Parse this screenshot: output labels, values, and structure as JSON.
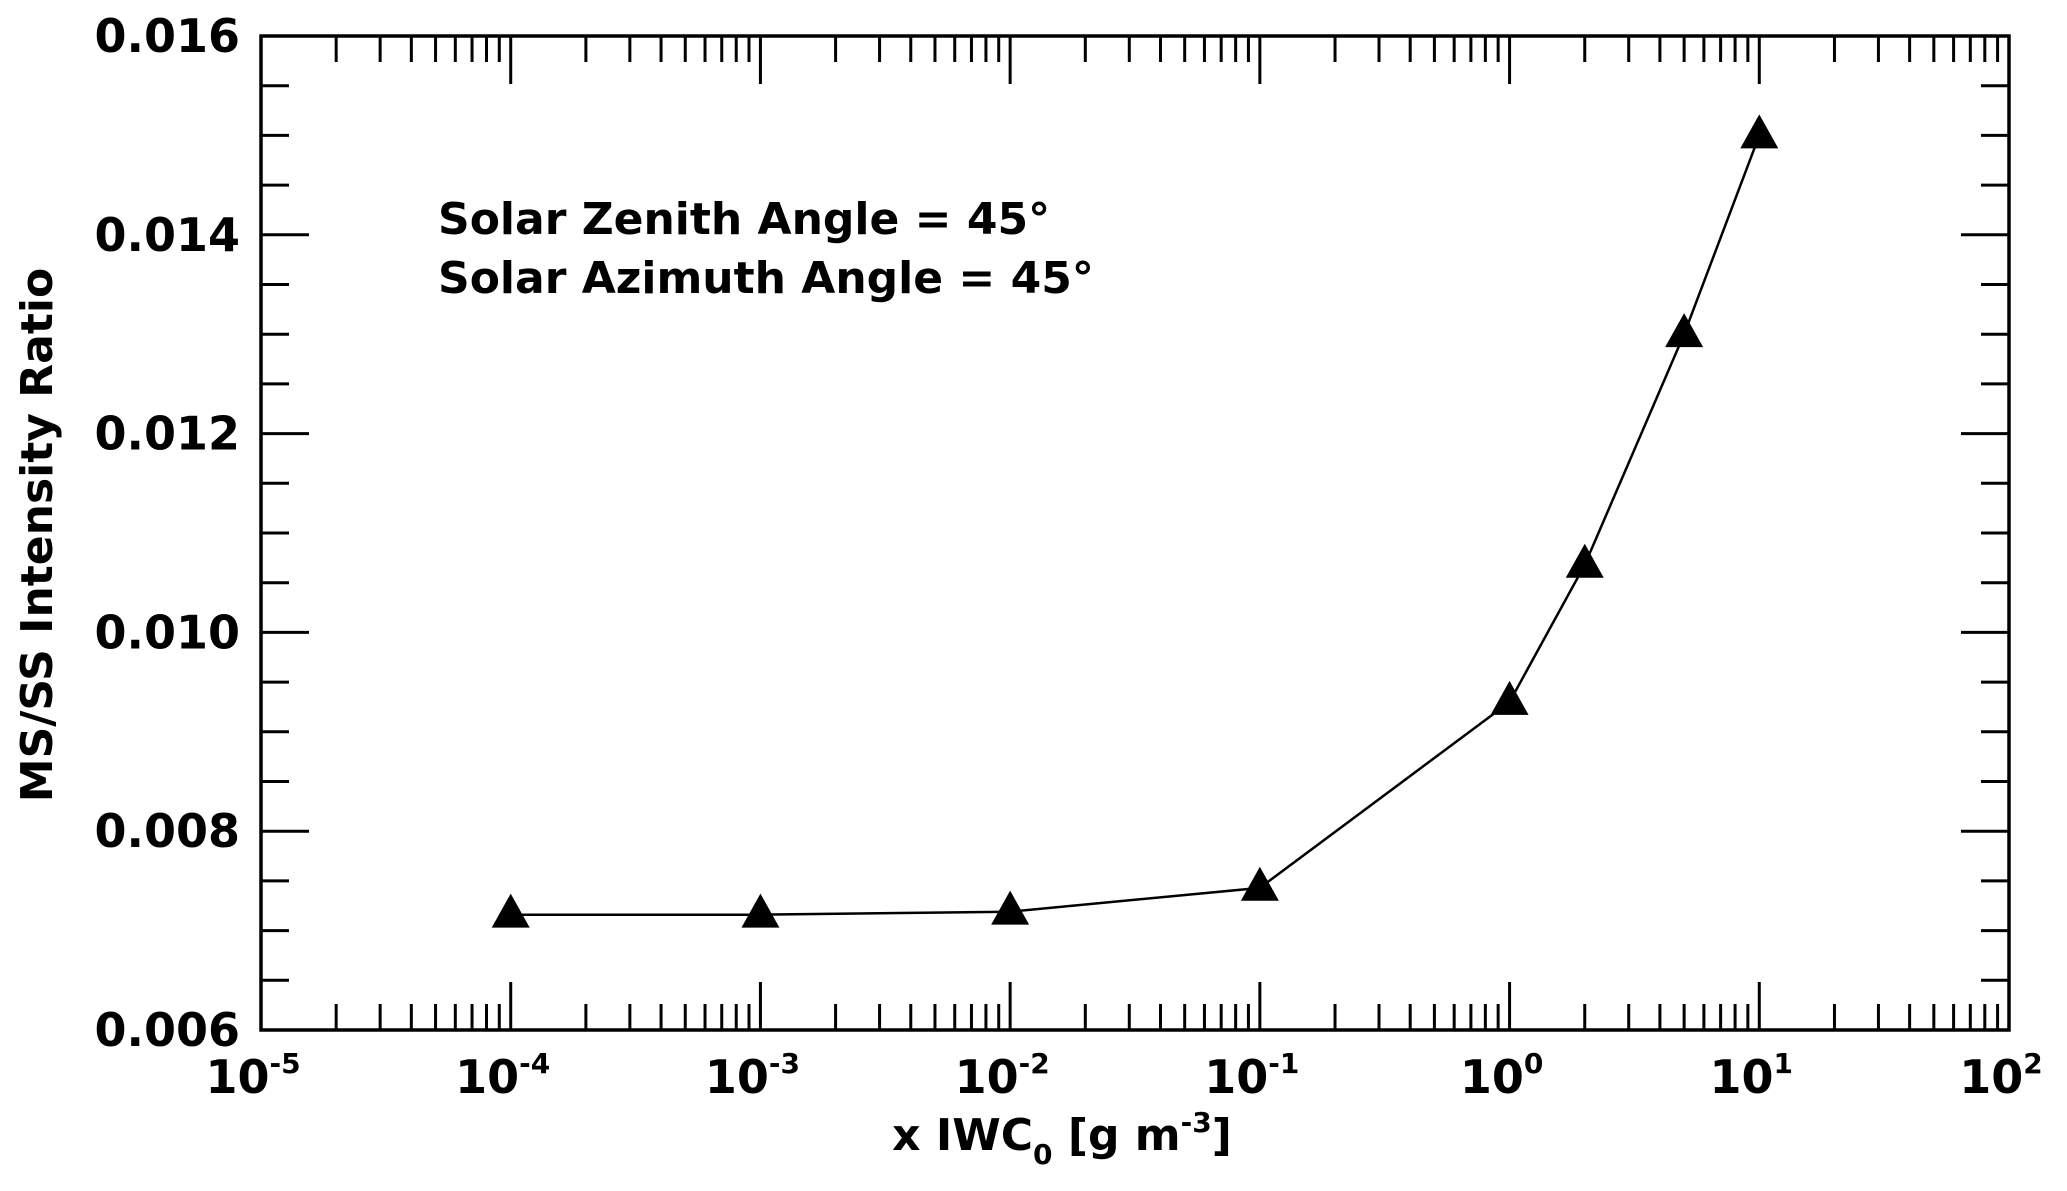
{
  "chart_data": {
    "type": "line",
    "xscale": "log",
    "xlim": [
      1e-05,
      100
    ],
    "ylim": [
      0.006,
      0.016
    ],
    "x_ticks": [
      {
        "base": "10",
        "exp": "-5"
      },
      {
        "base": "10",
        "exp": "-4"
      },
      {
        "base": "10",
        "exp": "-3"
      },
      {
        "base": "10",
        "exp": "-2"
      },
      {
        "base": "10",
        "exp": "-1"
      },
      {
        "base": "10",
        "exp": "0"
      },
      {
        "base": "10",
        "exp": "1"
      },
      {
        "base": "10",
        "exp": "2"
      }
    ],
    "y_ticks": [
      "0.006",
      "0.008",
      "0.010",
      "0.012",
      "0.014",
      "0.016"
    ],
    "xlabel": {
      "pre": "x IWC",
      "sub": "0",
      "mid": " [g m",
      "sup": "-3",
      "post": "]"
    },
    "ylabel": "MS/SS Intensity Ratio",
    "annotations": [
      "Solar Zenith Angle = 45°",
      "Solar Azimuth Angle = 45°"
    ],
    "grid": false,
    "series": [
      {
        "marker": "triangle",
        "color": "#000000",
        "x": [
          0.0001,
          0.001,
          0.01,
          0.1,
          1,
          2,
          5,
          10
        ],
        "y": [
          0.00716,
          0.00716,
          0.00719,
          0.00743,
          0.0093,
          0.01068,
          0.013,
          0.015
        ]
      }
    ]
  }
}
